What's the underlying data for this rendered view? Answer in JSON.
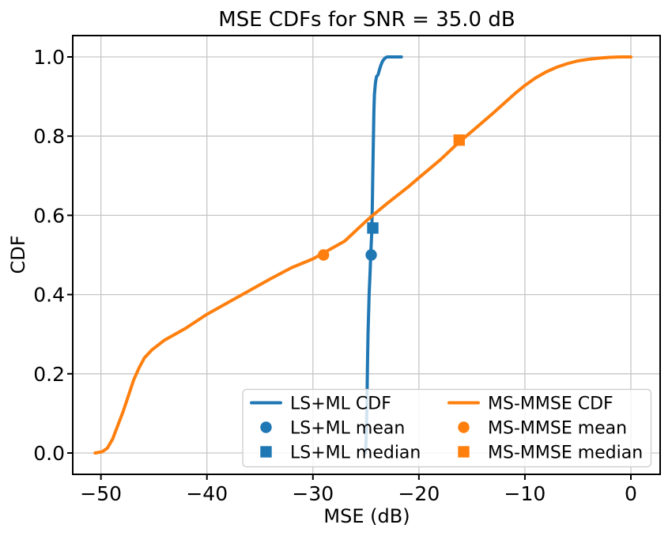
{
  "chart_data": {
    "type": "line",
    "title": "MSE CDFs for SNR = 35.0 dB",
    "xlabel": "MSE (dB)",
    "ylabel": "CDF",
    "xlim": [
      -52.66,
      2.76
    ],
    "ylim": [
      -0.0539,
      1.0539
    ],
    "grid": true,
    "legend_position": "lower center-right",
    "xticks": {
      "values": [
        -50,
        -40,
        -30,
        -20,
        -10,
        0
      ],
      "labels": [
        "−50",
        "−40",
        "−30",
        "−20",
        "−10",
        "0"
      ]
    },
    "yticks": {
      "values": [
        0.0,
        0.2,
        0.4,
        0.6,
        0.8,
        1.0
      ],
      "labels": [
        "0.0",
        "0.2",
        "0.4",
        "0.6",
        "0.8",
        "1.0"
      ]
    },
    "colors": {
      "ls_ml": "#1f77b4",
      "ms_mmse": "#ff7f0e",
      "grid": "#c6c6c6",
      "spine": "#000000",
      "legend_border": "#cccccc",
      "legend_fill": "rgba(255,255,255,0.8)"
    },
    "series": [
      {
        "id": "ls-ml-cdf",
        "name": "LS+ML CDF",
        "color_key": "ls_ml",
        "points": [
          [
            -25.05,
            0.0
          ],
          [
            -25.0,
            0.02
          ],
          [
            -24.95,
            0.06
          ],
          [
            -24.9,
            0.13
          ],
          [
            -24.85,
            0.22
          ],
          [
            -24.8,
            0.3
          ],
          [
            -24.7,
            0.4
          ],
          [
            -24.6,
            0.46
          ],
          [
            -24.55,
            0.5
          ],
          [
            -24.45,
            0.555
          ],
          [
            -24.4,
            0.62
          ],
          [
            -24.35,
            0.7
          ],
          [
            -24.3,
            0.78
          ],
          [
            -24.25,
            0.86
          ],
          [
            -24.2,
            0.905
          ],
          [
            -24.1,
            0.935
          ],
          [
            -24.0,
            0.95
          ],
          [
            -23.85,
            0.955
          ],
          [
            -23.75,
            0.965
          ],
          [
            -23.6,
            0.978
          ],
          [
            -23.45,
            0.988
          ],
          [
            -23.3,
            0.994
          ],
          [
            -23.15,
            0.998
          ],
          [
            -23.0,
            1.0
          ],
          [
            -21.65,
            1.0
          ]
        ]
      },
      {
        "id": "ms-mmse-cdf",
        "name": "MS-MMSE CDF",
        "color_key": "ms_mmse",
        "points": [
          [
            -50.55,
            0.0
          ],
          [
            -49.9,
            0.003
          ],
          [
            -49.4,
            0.012
          ],
          [
            -48.9,
            0.035
          ],
          [
            -48.4,
            0.07
          ],
          [
            -47.9,
            0.105
          ],
          [
            -47.4,
            0.145
          ],
          [
            -46.9,
            0.185
          ],
          [
            -46.4,
            0.215
          ],
          [
            -45.9,
            0.24
          ],
          [
            -45.2,
            0.26
          ],
          [
            -44.0,
            0.285
          ],
          [
            -42.0,
            0.315
          ],
          [
            -40.0,
            0.35
          ],
          [
            -38.0,
            0.38
          ],
          [
            -36.0,
            0.41
          ],
          [
            -34.0,
            0.44
          ],
          [
            -32.0,
            0.468
          ],
          [
            -30.0,
            0.49
          ],
          [
            -29.0,
            0.505
          ],
          [
            -27.0,
            0.535
          ],
          [
            -25.0,
            0.585
          ],
          [
            -24.35,
            0.6
          ],
          [
            -23.0,
            0.63
          ],
          [
            -21.0,
            0.672
          ],
          [
            -20.0,
            0.695
          ],
          [
            -18.0,
            0.74
          ],
          [
            -16.2,
            0.785
          ],
          [
            -15.0,
            0.812
          ],
          [
            -14.0,
            0.835
          ],
          [
            -13.0,
            0.858
          ],
          [
            -12.0,
            0.882
          ],
          [
            -11.0,
            0.906
          ],
          [
            -10.0,
            0.928
          ],
          [
            -9.0,
            0.947
          ],
          [
            -8.0,
            0.962
          ],
          [
            -7.0,
            0.974
          ],
          [
            -6.0,
            0.983
          ],
          [
            -5.0,
            0.99
          ],
          [
            -4.0,
            0.994
          ],
          [
            -3.0,
            0.997
          ],
          [
            -2.0,
            0.999
          ],
          [
            -1.0,
            1.0
          ],
          [
            0.0,
            1.0
          ]
        ]
      }
    ],
    "markers": [
      {
        "id": "ls-ml-mean",
        "name": "LS+ML mean",
        "shape": "circle",
        "color_key": "ls_ml",
        "x": -24.5,
        "y": 0.5
      },
      {
        "id": "ls-ml-median",
        "name": "LS+ML median",
        "shape": "square",
        "color_key": "ls_ml",
        "x": -24.35,
        "y": 0.568
      },
      {
        "id": "ms-mmse-mean",
        "name": "MS-MMSE mean",
        "shape": "circle",
        "color_key": "ms_mmse",
        "x": -29.0,
        "y": 0.5
      },
      {
        "id": "ms-mmse-median",
        "name": "MS-MMSE median",
        "shape": "square",
        "color_key": "ms_mmse",
        "x": -16.2,
        "y": 0.79
      }
    ],
    "legend": {
      "columns": [
        [
          {
            "label": "LS+ML CDF",
            "swatch": "line",
            "color_key": "ls_ml"
          },
          {
            "label": "LS+ML mean",
            "swatch": "circle",
            "color_key": "ls_ml"
          },
          {
            "label": "LS+ML median",
            "swatch": "square",
            "color_key": "ls_ml"
          }
        ],
        [
          {
            "label": "MS-MMSE CDF",
            "swatch": "line",
            "color_key": "ms_mmse"
          },
          {
            "label": "MS-MMSE mean",
            "swatch": "circle",
            "color_key": "ms_mmse"
          },
          {
            "label": "MS-MMSE median",
            "swatch": "square",
            "color_key": "ms_mmse"
          }
        ]
      ]
    }
  }
}
